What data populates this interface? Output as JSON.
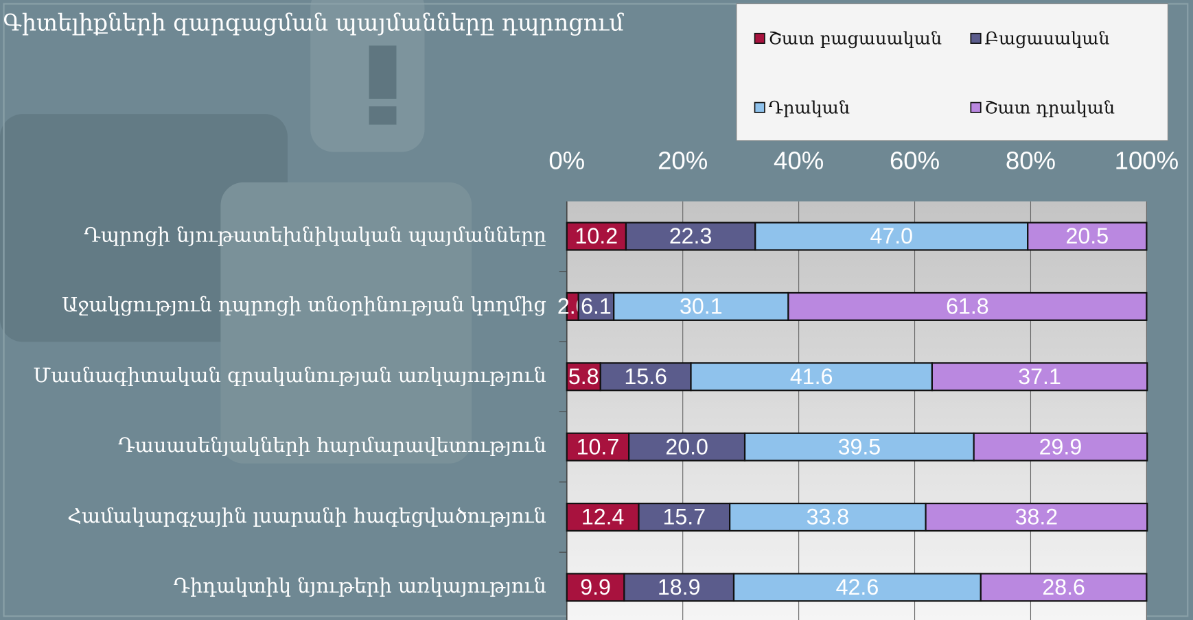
{
  "chart_data": {
    "type": "stacked-bar-horizontal",
    "title": "Գիտելիքների զարգացման պայմանները դպրոցում",
    "categories": [
      "Դպրոցի նյութատեխնիկական պայմանները",
      "Աջակցություն դպրոցի տնօրինության կողմից",
      "Մասնագիտական գրականության առկայություն",
      "Դասասենյակների հարմարավետություն",
      "Համակարգչային լսարանի հագեցվածություն",
      "Դիդակտիկ նյութերի առկայություն"
    ],
    "series": [
      {
        "name": "Շատ բացասական",
        "color": "#a8123e",
        "values": [
          10.2,
          2.0,
          5.8,
          10.7,
          12.4,
          9.9
        ],
        "value_labels": [
          "10.2",
          "2.0",
          "5.8",
          "10.7",
          "12.4",
          "9.9"
        ]
      },
      {
        "name": "Բացասական",
        "color": "#5b5c8c",
        "values": [
          22.3,
          6.1,
          15.6,
          20.0,
          15.7,
          18.9
        ],
        "value_labels": [
          "22.3",
          "6.1",
          "15.6",
          "20.0",
          "15.7",
          "18.9"
        ]
      },
      {
        "name": "Դրական",
        "color": "#8fc2ec",
        "values": [
          47.0,
          30.1,
          41.6,
          39.5,
          33.8,
          42.6
        ],
        "value_labels": [
          "47.0",
          "30.1",
          "41.6",
          "39.5",
          "33.8",
          "42.6"
        ]
      },
      {
        "name": "Շատ դրական",
        "color": "#ba88e0",
        "values": [
          20.5,
          61.8,
          37.1,
          29.9,
          38.2,
          28.6
        ],
        "value_labels": [
          "20.5",
          "61.8",
          "37.1",
          "29.9",
          "38.2",
          "28.6"
        ]
      }
    ],
    "xlim": [
      0,
      100
    ],
    "xticks": [
      {
        "value": 0,
        "label": "0%"
      },
      {
        "value": 20,
        "label": "20%"
      },
      {
        "value": 40,
        "label": "40%"
      },
      {
        "value": 60,
        "label": "60%"
      },
      {
        "value": 80,
        "label": "80%"
      },
      {
        "value": 100,
        "label": "100%"
      }
    ],
    "grid": true
  }
}
